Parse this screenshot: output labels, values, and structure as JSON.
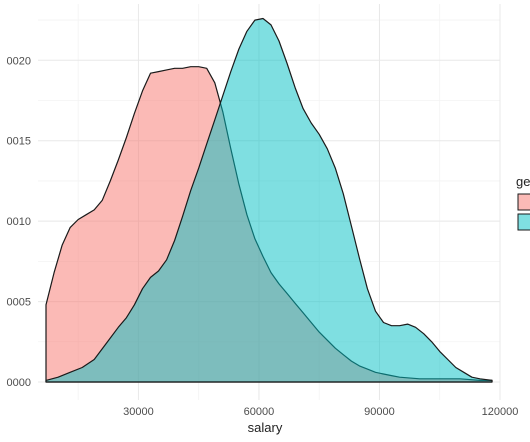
{
  "chart_data": {
    "type": "area",
    "subtype": "density",
    "xlabel": "salary",
    "ylabel": "",
    "xlim": [
      5000,
      120000
    ],
    "ylim": [
      0,
      2.35e-05
    ],
    "x_ticks": [
      30000,
      60000,
      90000,
      120000
    ],
    "x_tick_labels": [
      "30000",
      "60000",
      "90000",
      "120000"
    ],
    "y_ticks": [
      0,
      5e-06,
      1e-05,
      1.5e-05,
      2e-05
    ],
    "y_tick_labels": [
      "0000",
      "0005",
      "0010",
      "0015",
      "0020"
    ],
    "grid": true,
    "legend": {
      "title": "ge",
      "placement": "right"
    },
    "series": [
      {
        "color": "#F8766D",
        "fill": "#F8766D",
        "x": [
          7000,
          9000,
          11000,
          13000,
          15000,
          17000,
          19000,
          21000,
          23000,
          25000,
          27000,
          29000,
          31000,
          33000,
          35000,
          37000,
          39000,
          41000,
          43000,
          45000,
          47000,
          49000,
          51000,
          53000,
          55000,
          57000,
          59000,
          61000,
          63000,
          65000,
          67000,
          69000,
          71000,
          73000,
          75000,
          77000,
          79000,
          81000,
          83000,
          85000,
          87000,
          89000,
          91000,
          93000,
          95000,
          100000,
          105000,
          110000,
          115000,
          118000
        ],
        "y": [
          4.8e-06,
          6.8e-06,
          8.5e-06,
          9.6e-06,
          1.01e-05,
          1.04e-05,
          1.07e-05,
          1.13e-05,
          1.25e-05,
          1.38e-05,
          1.52e-05,
          1.67e-05,
          1.81e-05,
          1.92e-05,
          1.93e-05,
          1.94e-05,
          1.95e-05,
          1.95e-05,
          1.96e-05,
          1.96e-05,
          1.95e-05,
          1.86e-05,
          1.68e-05,
          1.45e-05,
          1.23e-05,
          1.04e-05,
          8.9e-06,
          7.8e-06,
          6.8e-06,
          6.1e-06,
          5.5e-06,
          4.9e-06,
          4.3e-06,
          3.7e-06,
          3.1e-06,
          2.6e-06,
          2.1e-06,
          1.7e-06,
          1.3e-06,
          1e-06,
          8e-07,
          6e-07,
          5e-07,
          4e-07,
          3e-07,
          2e-07,
          2e-07,
          2e-07,
          1e-07,
          1e-07
        ]
      },
      {
        "color": "#00BFC4",
        "fill": "#00BFC4",
        "x": [
          7000,
          10000,
          13000,
          16000,
          19000,
          22000,
          25000,
          27000,
          29000,
          31000,
          33000,
          35000,
          37000,
          39000,
          41000,
          43000,
          45000,
          47000,
          49000,
          51000,
          53000,
          55000,
          57000,
          59000,
          61000,
          63000,
          65000,
          67000,
          69000,
          71000,
          73000,
          75000,
          77000,
          79000,
          81000,
          83000,
          85000,
          87000,
          89000,
          91000,
          93000,
          95000,
          97000,
          99000,
          101000,
          103000,
          105000,
          107000,
          109000,
          111000,
          113000,
          115000,
          118000
        ],
        "y": [
          1e-07,
          3e-07,
          6e-07,
          9e-07,
          1.4e-06,
          2.4e-06,
          3.4e-06,
          4e-06,
          4.8e-06,
          5.8e-06,
          6.5e-06,
          6.9e-06,
          7.6e-06,
          8.8e-06,
          1.03e-05,
          1.19e-05,
          1.33e-05,
          1.48e-05,
          1.63e-05,
          1.78e-05,
          1.93e-05,
          2.07e-05,
          2.18e-05,
          2.25e-05,
          2.26e-05,
          2.22e-05,
          2.12e-05,
          1.98e-05,
          1.83e-05,
          1.7e-05,
          1.61e-05,
          1.54e-05,
          1.45e-05,
          1.33e-05,
          1.17e-05,
          9.7e-06,
          7.7e-06,
          5.8e-06,
          4.4e-06,
          3.7e-06,
          3.5e-06,
          3.5e-06,
          3.6e-06,
          3.4e-06,
          3e-06,
          2.5e-06,
          1.9e-06,
          1.4e-06,
          9e-07,
          6e-07,
          3e-07,
          2e-07,
          1e-07
        ]
      }
    ]
  }
}
